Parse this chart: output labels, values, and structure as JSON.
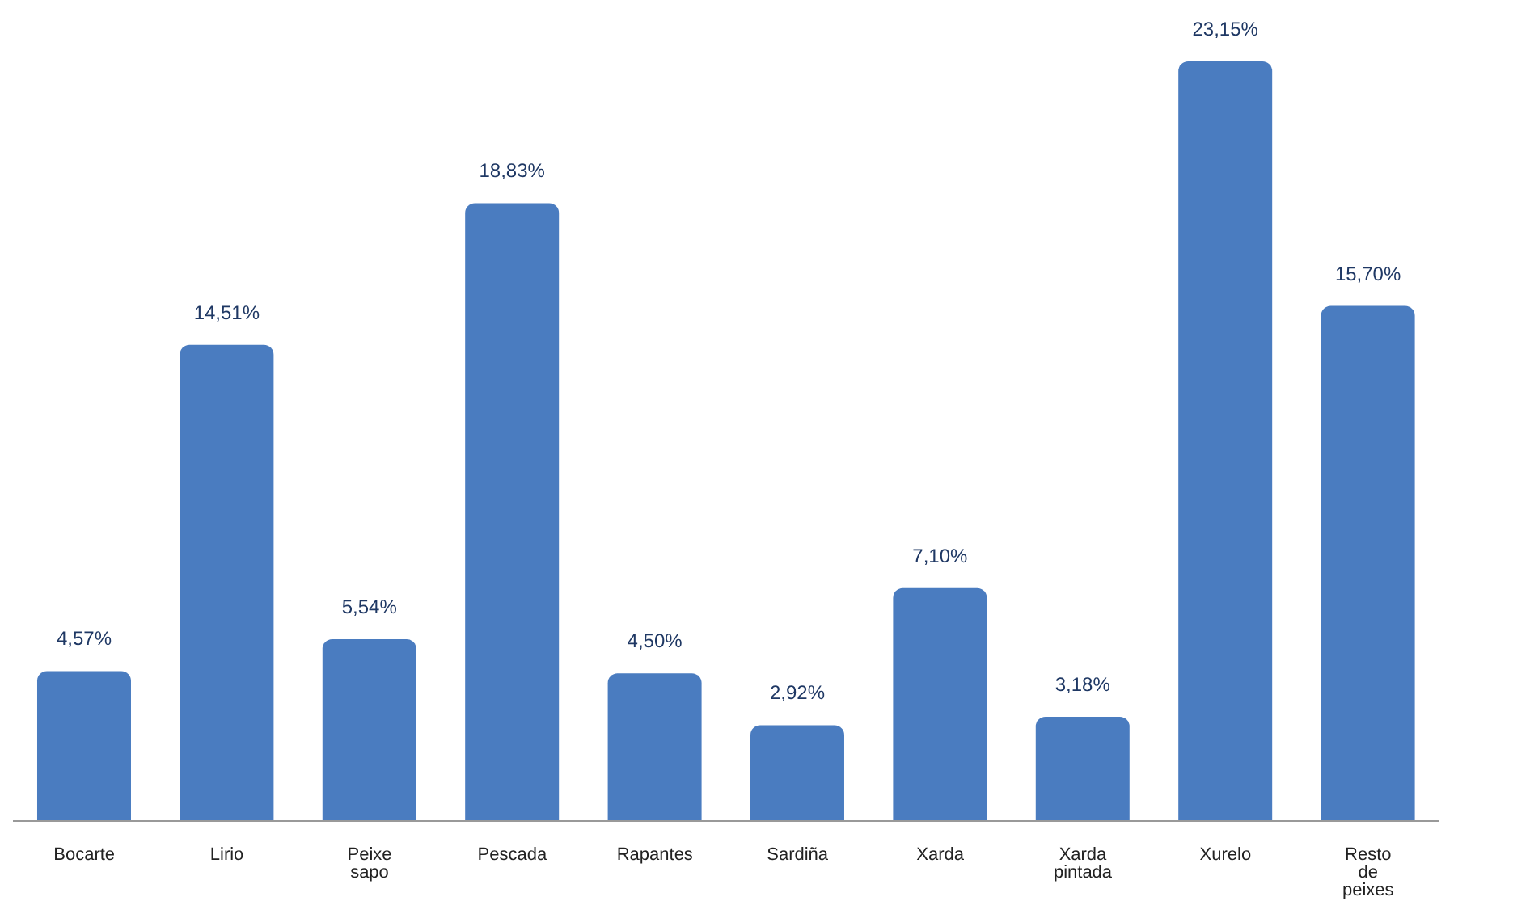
{
  "chart_data": {
    "type": "bar",
    "categories": [
      "Bocarte",
      "Lirio",
      "Peixe sapo",
      "Pescada",
      "Rapantes",
      "Sardiña",
      "Xarda",
      "Xarda pintada",
      "Xurelo",
      "Resto de peixes"
    ],
    "values": [
      4.57,
      14.51,
      5.54,
      18.83,
      4.5,
      2.92,
      7.1,
      3.18,
      23.15,
      15.7
    ],
    "value_labels": [
      "4,57%",
      "14,51%",
      "5,54%",
      "18,83%",
      "4,50%",
      "2,92%",
      "7,10%",
      "3,18%",
      "23,15%",
      "15,70%"
    ],
    "color": "#4a7cc0",
    "grid": false,
    "legend": false
  }
}
